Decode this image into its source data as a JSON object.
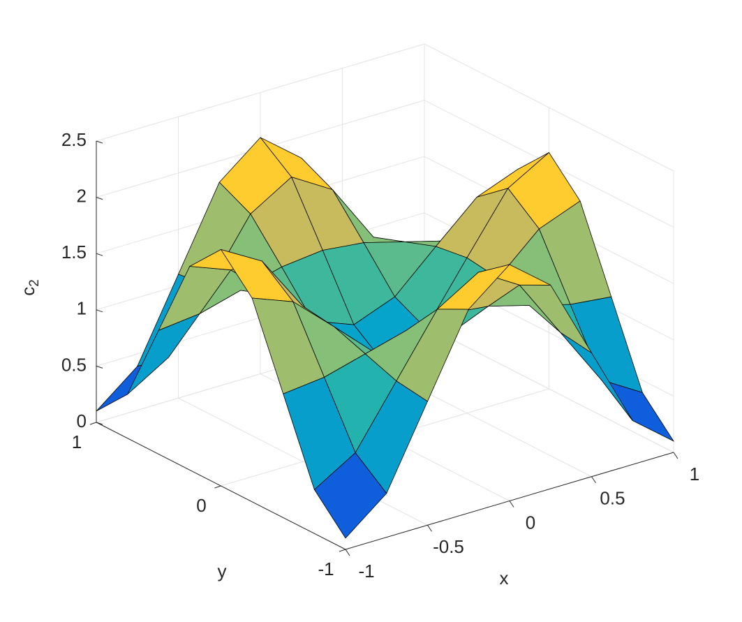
{
  "chart_data": {
    "type": "surface",
    "x": [
      -1,
      -0.75,
      -0.5,
      -0.25,
      0,
      0.25,
      0.5,
      0.75,
      1
    ],
    "y": [
      -1,
      -0.75,
      -0.5,
      -0.25,
      0,
      0.25,
      0.5,
      0.75,
      1
    ],
    "z": [
      [
        0.1,
        0.39,
        1.1,
        1.81,
        2.1,
        1.81,
        1.1,
        0.39,
        0.1
      ],
      [
        0.39,
        0.61,
        1.14,
        1.67,
        1.89,
        1.67,
        1.14,
        0.61,
        0.39
      ],
      [
        1.1,
        1.14,
        1.24,
        1.34,
        1.38,
        1.34,
        1.24,
        1.14,
        1.1
      ],
      [
        1.81,
        1.67,
        1.34,
        1.0,
        0.86,
        1.0,
        1.34,
        1.67,
        1.81
      ],
      [
        2.1,
        1.89,
        1.38,
        0.86,
        0.65,
        0.86,
        1.38,
        1.89,
        2.1
      ],
      [
        1.81,
        1.67,
        1.34,
        1.0,
        0.86,
        1.0,
        1.34,
        1.67,
        1.81
      ],
      [
        1.1,
        1.14,
        1.24,
        1.34,
        1.38,
        1.34,
        1.24,
        1.14,
        1.1
      ],
      [
        0.39,
        0.61,
        1.14,
        1.67,
        1.89,
        1.67,
        1.14,
        0.61,
        0.39
      ],
      [
        0.1,
        0.39,
        1.1,
        1.81,
        2.1,
        1.81,
        1.1,
        0.39,
        0.1
      ]
    ],
    "xlabel": "x",
    "ylabel": "y",
    "zlabel": "c",
    "zlabel_subscript": "2",
    "xlim": [
      -1,
      1
    ],
    "ylim": [
      -1,
      1
    ],
    "zlim": [
      0,
      2.5
    ],
    "xticks": [
      -1,
      -0.5,
      0,
      0.5,
      1
    ],
    "yticks": [
      -1,
      0,
      1
    ],
    "zticks": [
      0,
      0.5,
      1,
      1.5,
      2,
      2.5
    ],
    "grid": true,
    "edge_color": "#000000",
    "colormap": [
      "#352a87",
      "#0f5cdd",
      "#1481d6",
      "#06a4ca",
      "#2eb7a4",
      "#87bf77",
      "#d1bb59",
      "#fec832",
      "#f9fb0e"
    ]
  }
}
